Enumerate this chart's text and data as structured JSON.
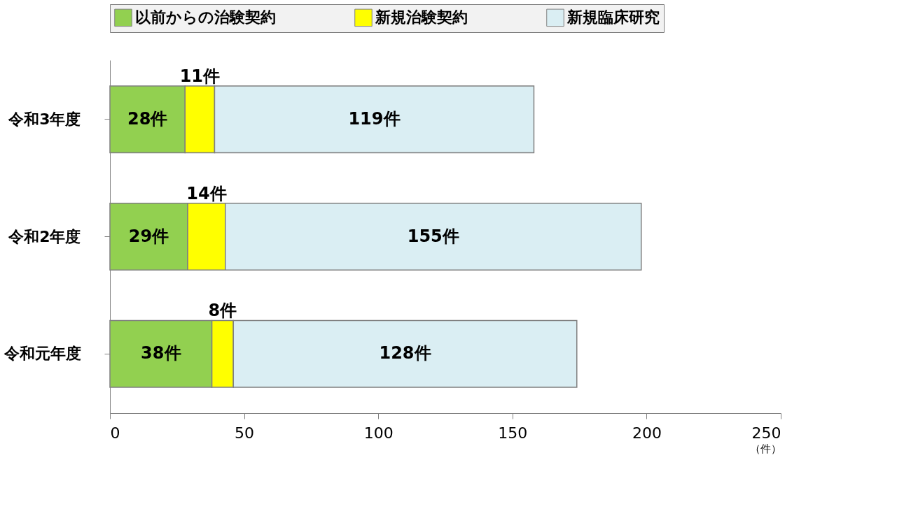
{
  "chart_data": {
    "type": "bar",
    "orientation": "horizontal",
    "stacked": true,
    "categories": [
      "令和3年度",
      "令和2年度",
      "令和元年度"
    ],
    "series": [
      {
        "name": "以前からの治験契約",
        "color": "#92d050",
        "values": [
          28,
          29,
          38
        ],
        "value_labels": [
          "28件",
          "29件",
          "38件"
        ]
      },
      {
        "name": "新規治験契約",
        "color": "#ffff00",
        "values": [
          11,
          14,
          8
        ],
        "value_labels": [
          "11件",
          "14件",
          "8件"
        ]
      },
      {
        "name": "新規臨床研究",
        "color": "#daeef3",
        "values": [
          119,
          155,
          128
        ],
        "value_labels": [
          "119件",
          "155件",
          "128件"
        ]
      }
    ],
    "xlim": [
      0,
      250
    ],
    "xticks": [
      0,
      50,
      100,
      150,
      200,
      250
    ],
    "xlabel": "（件）",
    "legend": "top",
    "grid": false
  }
}
